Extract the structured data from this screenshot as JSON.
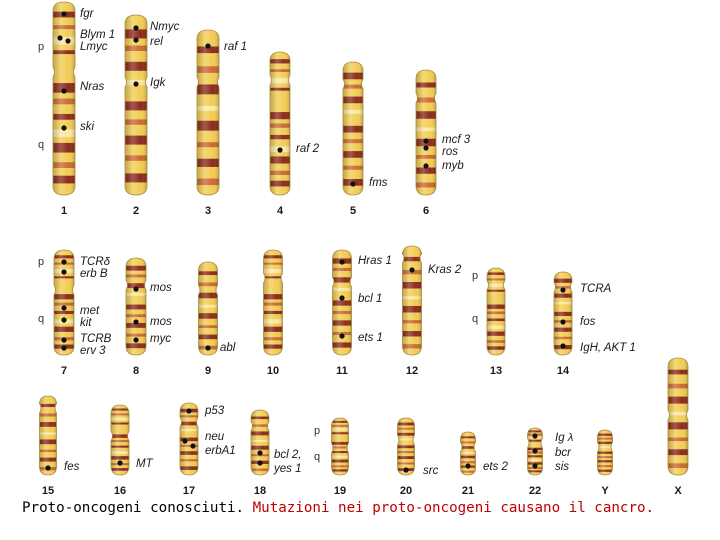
{
  "colors": {
    "band_base": "#f2cd55",
    "band_light": "#fbe9a2",
    "band_dark": "#8c2b1c",
    "band_mid": "#c96a32",
    "outline": "#a88a3c",
    "gene_dot": "#111111",
    "caption_red": "#c00000"
  },
  "arm_labels": {
    "p": "p",
    "q": "q"
  },
  "chromosomes": [
    {
      "label": "1",
      "genes": [
        "fgr",
        "Blym 1",
        "Lmyc",
        "Nras",
        "ski"
      ]
    },
    {
      "label": "2",
      "genes": [
        "Nmyc",
        "rel",
        "Igk"
      ]
    },
    {
      "label": "3",
      "genes": [
        "raf 1"
      ]
    },
    {
      "label": "4",
      "genes": [
        "raf 2"
      ]
    },
    {
      "label": "5",
      "genes": [
        "fms"
      ]
    },
    {
      "label": "6",
      "genes": [
        "mcf 3",
        "ros",
        "myb"
      ]
    },
    {
      "label": "7",
      "genes": [
        "TCRδ",
        "erb B",
        "met",
        "kit",
        "TCRB",
        "erv 3"
      ]
    },
    {
      "label": "8",
      "genes": [
        "mos",
        "mos",
        "myc"
      ]
    },
    {
      "label": "9",
      "genes": [
        "abl"
      ]
    },
    {
      "label": "10",
      "genes": []
    },
    {
      "label": "11",
      "genes": [
        "Hras 1",
        "bcl 1",
        "ets 1"
      ]
    },
    {
      "label": "12",
      "genes": [
        "Kras 2"
      ]
    },
    {
      "label": "13",
      "genes": []
    },
    {
      "label": "14",
      "genes": [
        "TCRA",
        "fos",
        "IgH, AKT 1"
      ]
    },
    {
      "label": "15",
      "genes": [
        "fes"
      ]
    },
    {
      "label": "16",
      "genes": [
        "MT"
      ]
    },
    {
      "label": "17",
      "genes": [
        "p53",
        "neu",
        "erbA1"
      ]
    },
    {
      "label": "18",
      "genes": [
        "bcl 2,",
        "yes 1"
      ]
    },
    {
      "label": "19",
      "genes": []
    },
    {
      "label": "20",
      "genes": [
        "src"
      ]
    },
    {
      "label": "21",
      "genes": [
        "ets 2"
      ]
    },
    {
      "label": "22",
      "genes": [
        "Ig λ",
        "bcr",
        "sis"
      ]
    },
    {
      "label": "Y",
      "genes": []
    },
    {
      "label": "X",
      "genes": []
    }
  ],
  "caption": {
    "part1": "Proto-oncogeni conosciuti.",
    "part2": "Mutazioni nei proto-oncogeni causano il cancro."
  }
}
